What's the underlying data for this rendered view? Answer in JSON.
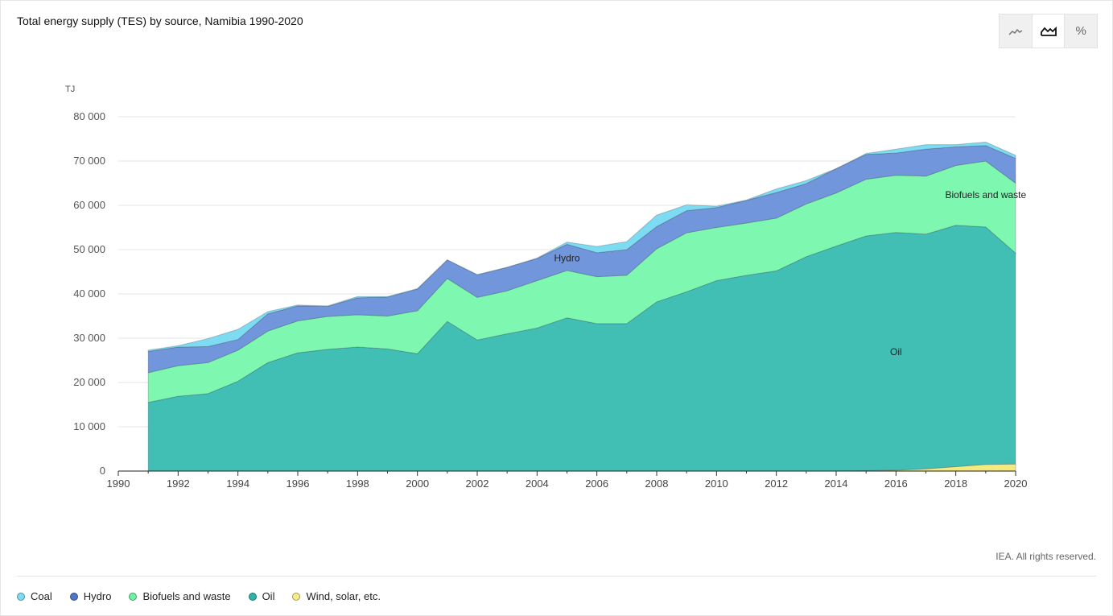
{
  "title": "Total energy supply (TES) by source, Namibia 1990-2020",
  "credit": "IEA. All rights reserved.",
  "toggle": {
    "icons": [
      "line-chart-icon",
      "area-chart-icon",
      "percent-icon"
    ],
    "percent_label": "%",
    "active": "area-chart-icon"
  },
  "chart_data": {
    "type": "area",
    "stacked": true,
    "title": "Total energy supply (TES) by source, Namibia 1990-2020",
    "ylabel": "TJ",
    "xlabel": "",
    "xlim": [
      1990,
      2020
    ],
    "ylim": [
      0,
      80000
    ],
    "yticks": [
      0,
      10000,
      20000,
      30000,
      40000,
      50000,
      60000,
      70000,
      80000
    ],
    "ytick_labels": [
      "0",
      "10 000",
      "20 000",
      "30 000",
      "40 000",
      "50 000",
      "60 000",
      "70 000",
      "80 000"
    ],
    "xticks": [
      1990,
      1992,
      1994,
      1996,
      1998,
      2000,
      2002,
      2004,
      2006,
      2008,
      2010,
      2012,
      2014,
      2016,
      2018,
      2020
    ],
    "grid": true,
    "legend_position": "bottom-left",
    "x": [
      1991,
      1992,
      1993,
      1994,
      1995,
      1996,
      1997,
      1998,
      1999,
      2000,
      2001,
      2002,
      2003,
      2004,
      2005,
      2006,
      2007,
      2008,
      2009,
      2010,
      2011,
      2012,
      2013,
      2014,
      2015,
      2016,
      2017,
      2018,
      2019,
      2020
    ],
    "series": [
      {
        "name": "Wind, solar, etc.",
        "color": "#f5ea7e",
        "values": [
          0,
          0,
          0,
          0,
          0,
          0,
          0,
          0,
          0,
          0,
          0,
          0,
          0,
          0,
          0,
          0,
          0,
          0,
          0,
          0,
          0,
          0,
          0,
          0,
          100,
          200,
          500,
          1000,
          1500,
          1600
        ]
      },
      {
        "name": "Oil",
        "color": "#41bfb5",
        "values": [
          15500,
          16900,
          17500,
          20300,
          24500,
          26700,
          27500,
          28000,
          27600,
          26500,
          33800,
          29600,
          31000,
          32300,
          34600,
          33300,
          33300,
          38200,
          40500,
          43000,
          44200,
          45200,
          48400,
          50800,
          53000,
          53700,
          53000,
          54500,
          53600,
          47600
        ]
      },
      {
        "name": "Biofuels and waste",
        "color": "#7ef7b0",
        "values": [
          6700,
          6900,
          7000,
          7000,
          7100,
          7200,
          7400,
          7300,
          7400,
          9700,
          9700,
          9600,
          9700,
          10700,
          10700,
          10600,
          10900,
          12000,
          13300,
          12000,
          11800,
          11900,
          11900,
          12000,
          12800,
          12900,
          13100,
          13500,
          14900,
          15800
        ]
      },
      {
        "name": "Hydro",
        "color": "#7196dc",
        "values": [
          4800,
          4200,
          3600,
          2400,
          3900,
          3400,
          2300,
          3800,
          4300,
          4900,
          4200,
          5100,
          5300,
          5000,
          5900,
          5400,
          5800,
          5000,
          5000,
          4500,
          5100,
          5800,
          4600,
          5500,
          5600,
          5000,
          6100,
          4200,
          3500,
          5600
        ]
      },
      {
        "name": "Coal",
        "color": "#7ddbf2",
        "values": [
          300,
          300,
          1800,
          2300,
          500,
          200,
          100,
          300,
          100,
          100,
          0,
          100,
          0,
          100,
          500,
          1400,
          1800,
          2600,
          1300,
          300,
          100,
          800,
          700,
          0,
          200,
          900,
          1000,
          500,
          800,
          700
        ]
      }
    ],
    "annotations": [
      {
        "text": "Hydro",
        "series": "Hydro"
      },
      {
        "text": "Biofuels and waste",
        "series": "Biofuels and waste"
      },
      {
        "text": "Oil",
        "series": "Oil"
      }
    ]
  },
  "legend": [
    {
      "label": "Coal",
      "color": "#7ddbf2"
    },
    {
      "label": "Hydro",
      "color": "#4f75c9"
    },
    {
      "label": "Biofuels and waste",
      "color": "#6ff0a4"
    },
    {
      "label": "Oil",
      "color": "#2fb3a8"
    },
    {
      "label": "Wind, solar, etc.",
      "color": "#f7ec86"
    }
  ]
}
